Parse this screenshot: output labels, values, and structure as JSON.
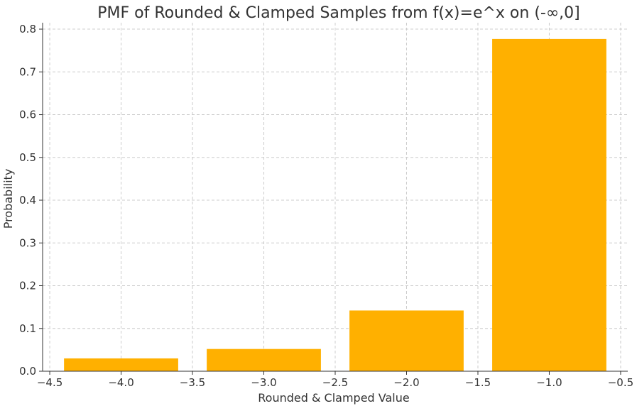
{
  "chart_data": {
    "type": "bar",
    "title": "PMF of Rounded & Clamped Samples from f(x)=e^x on (-∞,0]",
    "xlabel": "Rounded & Clamped Value",
    "ylabel": "Probability",
    "x": [
      -4.0,
      -3.0,
      -2.0,
      -1.0
    ],
    "values": [
      0.03,
      0.052,
      0.142,
      0.777
    ],
    "bar_width": 0.8,
    "bar_color": "#FFB000",
    "xlim": [
      -4.55,
      -0.45
    ],
    "ylim": [
      0,
      0.815
    ],
    "xticks": [
      -4.5,
      -4.0,
      -3.5,
      -3.0,
      -2.5,
      -2.0,
      -1.5,
      -1.0,
      -0.5
    ],
    "xtick_labels": [
      "−4.5",
      "−4.0",
      "−3.5",
      "−3.0",
      "−2.5",
      "−2.0",
      "−1.5",
      "−1.0",
      "−0.5"
    ],
    "yticks": [
      0.0,
      0.1,
      0.2,
      0.3,
      0.4,
      0.5,
      0.6,
      0.7,
      0.8
    ],
    "ytick_labels": [
      "0.0",
      "0.1",
      "0.2",
      "0.3",
      "0.4",
      "0.5",
      "0.6",
      "0.7",
      "0.8"
    ],
    "grid": true
  }
}
